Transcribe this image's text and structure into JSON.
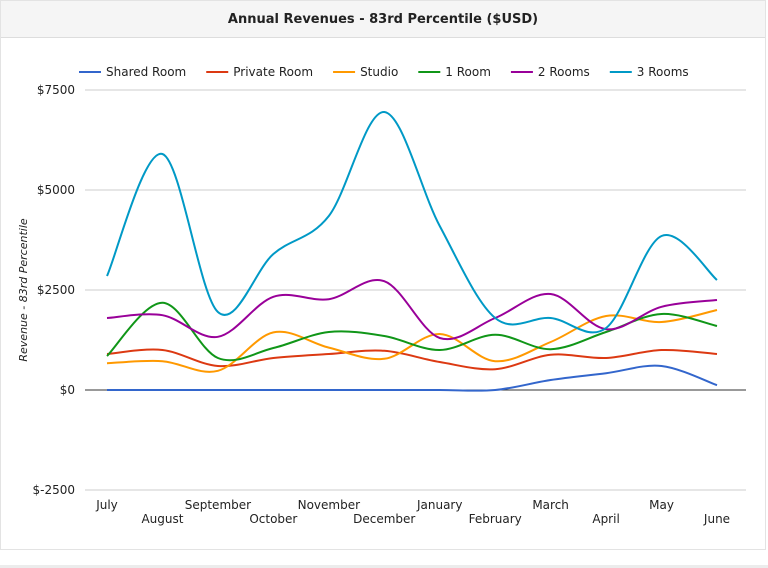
{
  "chart_data": {
    "type": "line",
    "title": "Annual Revenues - 83rd Percentile ($USD)",
    "xlabel": "",
    "ylabel": "Revenue - 83rd Percentile",
    "categories": [
      "July",
      "August",
      "September",
      "October",
      "November",
      "December",
      "January",
      "February",
      "March",
      "April",
      "May",
      "June"
    ],
    "ylim": [
      -2500,
      7500
    ],
    "yticks": [
      -2500,
      0,
      2500,
      5000,
      7500
    ],
    "ytick_labels": [
      "$-2500",
      "$0",
      "$2500",
      "$5000",
      "$7500"
    ],
    "grid": true,
    "legend_position": "top",
    "series": [
      {
        "name": "Shared Room",
        "color": "#3366cc",
        "values": [
          0,
          0,
          0,
          0,
          0,
          0,
          0,
          0,
          250,
          420,
          600,
          120
        ]
      },
      {
        "name": "Private Room",
        "color": "#dc3912",
        "values": [
          900,
          1000,
          600,
          800,
          900,
          980,
          700,
          520,
          880,
          800,
          1000,
          900
        ]
      },
      {
        "name": "Studio",
        "color": "#ff9900",
        "values": [
          670,
          720,
          480,
          1440,
          1060,
          780,
          1400,
          720,
          1200,
          1850,
          1700,
          2000
        ]
      },
      {
        "name": "1 Room",
        "color": "#109618",
        "values": [
          850,
          2180,
          800,
          1050,
          1450,
          1350,
          1000,
          1380,
          1020,
          1450,
          1900,
          1600
        ]
      },
      {
        "name": "2 Rooms",
        "color": "#990099",
        "values": [
          1800,
          1870,
          1330,
          2330,
          2270,
          2720,
          1300,
          1800,
          2400,
          1520,
          2080,
          2250
        ]
      },
      {
        "name": "3 Rooms",
        "color": "#0099c6",
        "values": [
          2850,
          5900,
          1950,
          3400,
          4350,
          6950,
          4100,
          1800,
          1800,
          1550,
          3850,
          2750
        ]
      }
    ]
  }
}
